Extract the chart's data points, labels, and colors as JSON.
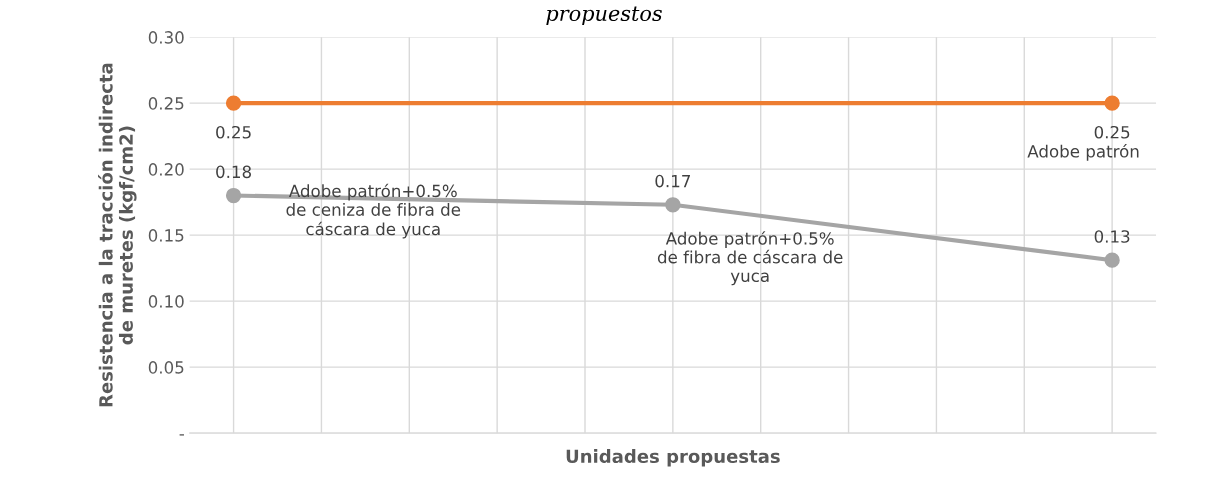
{
  "chart_data": {
    "type": "line",
    "title": "propuestos",
    "xlabel": "Unidades propuestas",
    "ylabel": "Resistencia a la tracción indirecta\nde muretes (kgf/cm2)",
    "categories": [
      null,
      null,
      null,
      null,
      null,
      null,
      null,
      null,
      null,
      null,
      null
    ],
    "ylim": [
      0,
      0.3
    ],
    "yticks": [
      {
        "value": 0,
        "label": "-"
      },
      {
        "value": 0.05,
        "label": "0.05"
      },
      {
        "value": 0.1,
        "label": "0.10"
      },
      {
        "value": 0.15,
        "label": "0.15"
      },
      {
        "value": 0.2,
        "label": "0.20"
      },
      {
        "value": 0.25,
        "label": "0.25"
      },
      {
        "value": 0.3,
        "label": "0.30"
      }
    ],
    "grid": true,
    "marker": "circle",
    "series": [
      {
        "color": "#a5a5a5",
        "values": [
          0.18,
          null,
          null,
          null,
          null,
          0.173,
          null,
          null,
          null,
          null,
          0.131
        ],
        "value_labels": [
          "0.18",
          null,
          null,
          null,
          null,
          "0.17",
          null,
          null,
          null,
          null,
          "0.13"
        ]
      },
      {
        "color": "#ed7d31",
        "values": [
          0.25,
          null,
          null,
          null,
          null,
          null,
          null,
          null,
          null,
          null,
          0.25
        ],
        "value_labels": [
          "0.25",
          null,
          null,
          null,
          null,
          null,
          null,
          null,
          null,
          null,
          "0.25"
        ]
      }
    ],
    "annotations": [
      "Adobe patrón+0.5%\nde ceniza de fibra de\ncáscara de yuca",
      "Adobe patrón+0.5%\nde fibra de cáscara de\nyuca",
      "Adobe patrón"
    ]
  }
}
